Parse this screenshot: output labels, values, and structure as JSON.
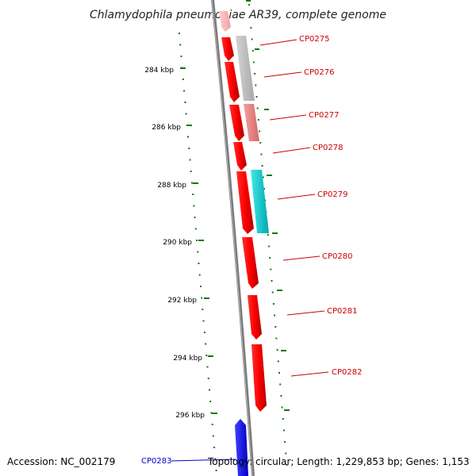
{
  "title": "Chlamydophila pneumoniae AR39, complete genome",
  "footer": {
    "accession": "Accession: NC_002179",
    "topology": "Topology: circular; Length: 1,229,853 bp; Genes: 1,153"
  },
  "colors": {
    "forward_gene": "#ff0000",
    "selected_gene": "#0000ff",
    "label_text": "#cc0000",
    "selected_label_text": "#0000cc",
    "scale_ticks": "#117711",
    "backbone": "#888888"
  },
  "scale": {
    "unit": "kbp",
    "ticks": [
      {
        "label": "284 kbp"
      },
      {
        "label": "286 kbp"
      },
      {
        "label": "288 kbp"
      },
      {
        "label": "290 kbp"
      },
      {
        "label": "292 kbp"
      },
      {
        "label": "294 kbp"
      },
      {
        "label": "296 kbp"
      }
    ]
  },
  "genes": [
    {
      "label": "CP0275",
      "color": "#cc0000"
    },
    {
      "label": "CP0276",
      "color": "#cc0000"
    },
    {
      "label": "CP0277",
      "color": "#cc0000"
    },
    {
      "label": "CP0278",
      "color": "#cc0000"
    },
    {
      "label": "CP0279",
      "color": "#cc0000"
    },
    {
      "label": "CP0280",
      "color": "#cc0000"
    },
    {
      "label": "CP0281",
      "color": "#cc0000"
    },
    {
      "label": "CP0282",
      "color": "#cc0000"
    },
    {
      "label": "CP0283",
      "color": "#0000cc"
    }
  ]
}
